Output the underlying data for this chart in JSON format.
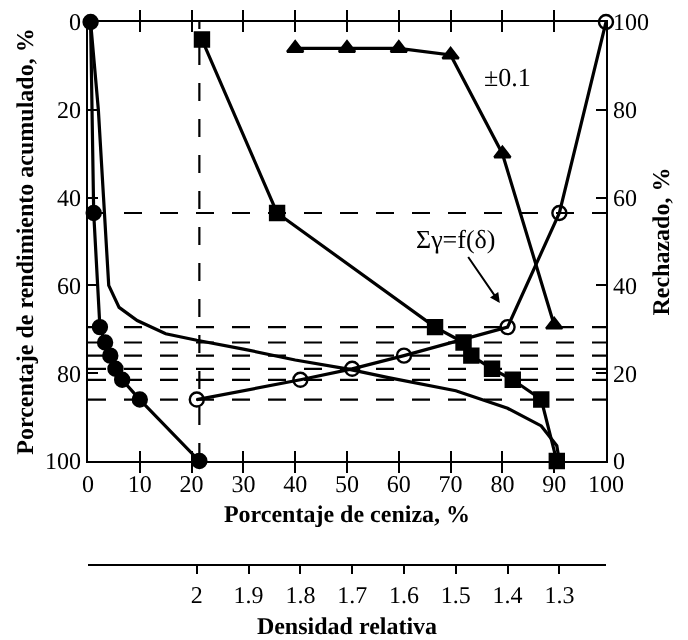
{
  "chart_data": {
    "type": "line",
    "xlabel": "Porcentaje de ceniza, %",
    "x2label": "Densidad relativa",
    "ylabel": "Porcentaje de rendimiento acumulado, %",
    "y2label": "Rechazado, %",
    "xlim": [
      0,
      100
    ],
    "xticks": [
      0,
      10,
      20,
      30,
      40,
      50,
      60,
      70,
      80,
      90,
      100
    ],
    "ylim": [
      100,
      0
    ],
    "yticks": [
      0,
      20,
      40,
      60,
      80,
      100
    ],
    "y2lim": [
      0,
      100
    ],
    "y2ticks": [
      0,
      20,
      40,
      60,
      80,
      100
    ],
    "x2lim": [
      2.21,
      1.21
    ],
    "x2ticks": [
      2,
      1.9,
      1.8,
      1.7,
      1.6,
      1.5,
      1.4,
      1.3
    ],
    "line_style": "solid",
    "series": [
      {
        "color": "#000000",
        "marker": "none",
        "x": [
          0.5,
          2,
          3,
          4,
          6,
          9.5,
          15,
          21,
          30,
          40,
          50,
          58,
          71,
          81,
          87.5,
          90.5,
          91
        ],
        "values": [
          0,
          20,
          40,
          60,
          65,
          68,
          71,
          72.5,
          74.5,
          77,
          79,
          81,
          84,
          88,
          92,
          96.5,
          100
        ]
      },
      {
        "color": "#000000",
        "marker": "circle",
        "x": [
          0.5,
          1.1,
          2.3,
          3.3,
          4.3,
          5.3,
          6.6,
          10,
          21.5
        ],
        "values": [
          0,
          43.5,
          69.5,
          73,
          76,
          79,
          81.5,
          86,
          100
        ]
      },
      {
        "color": "#000000",
        "marker": "square",
        "x": [
          22,
          36.5,
          67,
          72.5,
          74,
          78,
          82,
          87.5,
          90.5
        ],
        "values": [
          4,
          43.5,
          69.5,
          73,
          76,
          79,
          81.5,
          86,
          100
        ]
      },
      {
        "color": "#000000",
        "marker": "triangle",
        "axis": "y2",
        "x": [
          40,
          50,
          60,
          70,
          80,
          90
        ],
        "values": [
          94,
          94,
          94,
          92.5,
          70,
          31
        ]
      },
      {
        "color": "#000000",
        "marker": "circle-open",
        "axis": "x2",
        "x": [
          2,
          1.8,
          1.7,
          1.6,
          1.4,
          1.3,
          1.21
        ],
        "values": [
          86,
          81.5,
          79,
          76,
          69.5,
          43.5,
          0
        ]
      }
    ],
    "ref_lines": [
      {
        "axis": "x",
        "value": 21.5,
        "line_style": "dashed",
        "color": "#000000"
      },
      {
        "axis": "y",
        "value": 43.5,
        "line_style": "dashed",
        "color": "#000000"
      },
      {
        "axis": "y",
        "value": 69.5,
        "line_style": "dashed",
        "color": "#000000"
      },
      {
        "axis": "y",
        "value": 73,
        "line_style": "dashed",
        "color": "#000000"
      },
      {
        "axis": "y",
        "value": 76,
        "line_style": "dashed",
        "color": "#000000"
      },
      {
        "axis": "y",
        "value": 79,
        "line_style": "dashed",
        "color": "#000000"
      },
      {
        "axis": "y",
        "value": 81.5,
        "line_style": "dashed",
        "color": "#000000"
      },
      {
        "axis": "y",
        "value": 86,
        "line_style": "dashed",
        "color": "#000000"
      }
    ],
    "annotations": [
      "±0.1",
      "Σγ=f(δ)"
    ]
  }
}
